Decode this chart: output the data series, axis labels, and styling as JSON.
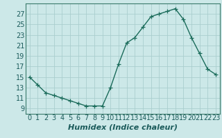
{
  "x": [
    0,
    1,
    2,
    3,
    4,
    5,
    6,
    7,
    8,
    9,
    10,
    11,
    12,
    13,
    14,
    15,
    16,
    17,
    18,
    19,
    20,
    21,
    22,
    23
  ],
  "y": [
    15,
    13.5,
    12,
    11.5,
    11,
    10.5,
    10,
    9.5,
    9.5,
    9.5,
    13,
    17.5,
    21.5,
    22.5,
    24.5,
    26.5,
    27,
    27.5,
    28,
    26,
    22.5,
    19.5,
    16.5,
    15.5
  ],
  "line_color": "#1a6b5a",
  "marker": "+",
  "marker_size": 4,
  "background_color": "#cce8e8",
  "grid_color": "#aacece",
  "xlabel": "Humidex (Indice chaleur)",
  "xlabel_fontsize": 8,
  "tick_fontsize": 7,
  "ylim": [
    8,
    29
  ],
  "xlim": [
    -0.5,
    23.5
  ],
  "yticks": [
    9,
    11,
    13,
    15,
    17,
    19,
    21,
    23,
    25,
    27
  ],
  "xticks": [
    0,
    1,
    2,
    3,
    4,
    5,
    6,
    7,
    8,
    9,
    10,
    11,
    12,
    13,
    14,
    15,
    16,
    17,
    18,
    19,
    20,
    21,
    22,
    23
  ],
  "linewidth": 1.0,
  "spine_color": "#3a7a6a"
}
